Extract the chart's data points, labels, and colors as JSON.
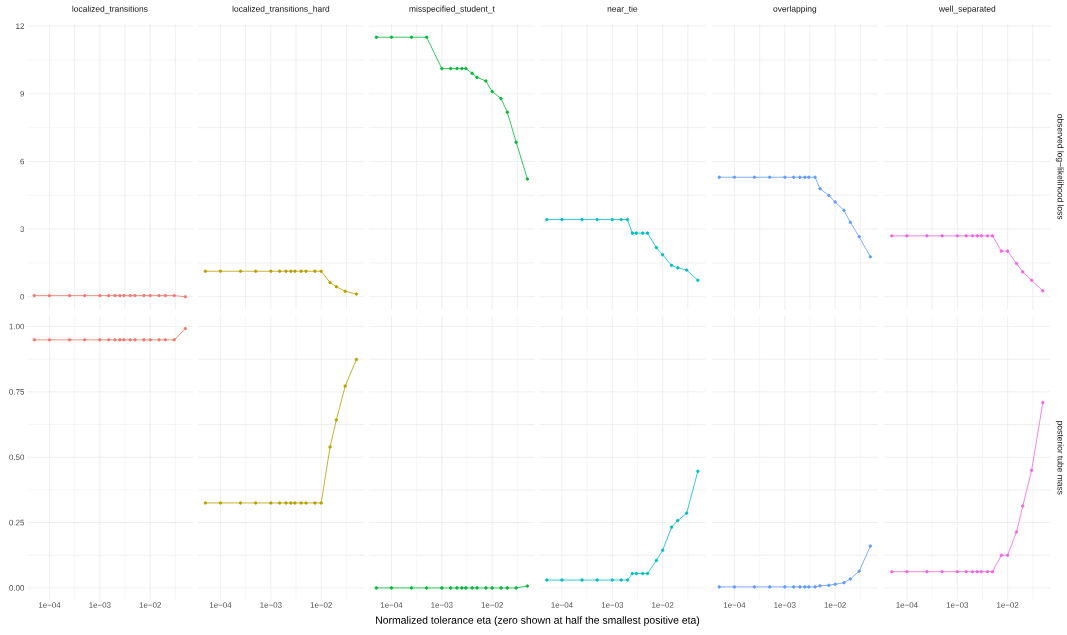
{
  "chart_data": [
    {
      "type": "line",
      "title": "localized_transitions",
      "x": [
        5e-05,
        0.0001,
        0.00025,
        0.0005,
        0.001,
        0.0015,
        0.002,
        0.0025,
        0.003,
        0.004,
        0.005,
        0.0075,
        0.01,
        0.015,
        0.02,
        0.03,
        0.05
      ],
      "series": [
        {
          "color": "#F8766D",
          "values": [
            0.05,
            0.05,
            0.05,
            0.05,
            0.05,
            0.05,
            0.05,
            0.05,
            0.05,
            0.05,
            0.05,
            0.05,
            0.05,
            0.05,
            0.05,
            0.05,
            0.0
          ]
        }
      ],
      "log": "x",
      "xlim": [
        3.56e-05,
        0.0705
      ],
      "ylim": [
        -0.57,
        12.1
      ],
      "xticks": [
        {
          "value": 0.0001,
          "label": null
        },
        {
          "value": 0.000316,
          "label": null
        },
        {
          "value": 0.001,
          "label": null
        },
        {
          "value": 0.00316,
          "label": null
        },
        {
          "value": 0.01,
          "label": null
        },
        {
          "value": 0.0316,
          "label": null
        }
      ],
      "yticks": [
        0,
        {
          "value": 1.5,
          "label": null
        },
        3,
        {
          "value": 4.5,
          "label": null
        },
        6,
        {
          "value": 7.5,
          "label": null
        },
        9,
        {
          "value": 10.5,
          "label": null
        },
        12
      ],
      "grid": true,
      "marker": "circle",
      "tick_labels": "y"
    },
    {
      "type": "line",
      "title": "localized_transitions_hard",
      "x": [
        5e-05,
        0.0001,
        0.00025,
        0.0005,
        0.001,
        0.0015,
        0.002,
        0.0025,
        0.003,
        0.004,
        0.005,
        0.0075,
        0.01,
        0.015,
        0.02,
        0.03,
        0.05
      ],
      "series": [
        {
          "color": "#B79F00",
          "values": [
            1.13,
            1.13,
            1.13,
            1.13,
            1.13,
            1.13,
            1.13,
            1.13,
            1.13,
            1.13,
            1.13,
            1.13,
            1.13,
            0.63,
            0.44,
            0.24,
            0.12
          ]
        }
      ],
      "log": "x",
      "xlim": [
        3.56e-05,
        0.0705
      ],
      "ylim": [
        -0.57,
        12.1
      ],
      "xticks": [
        {
          "value": 0.0001,
          "label": null
        },
        {
          "value": 0.000316,
          "label": null
        },
        {
          "value": 0.001,
          "label": null
        },
        {
          "value": 0.00316,
          "label": null
        },
        {
          "value": 0.01,
          "label": null
        },
        {
          "value": 0.0316,
          "label": null
        }
      ],
      "yticks": [
        {
          "value": 0,
          "label": null
        },
        {
          "value": 1.5,
          "label": null
        },
        {
          "value": 3,
          "label": null
        },
        {
          "value": 4.5,
          "label": null
        },
        {
          "value": 6,
          "label": null
        },
        {
          "value": 7.5,
          "label": null
        },
        {
          "value": 9,
          "label": null
        },
        {
          "value": 10.5,
          "label": null
        },
        {
          "value": 12,
          "label": null
        }
      ],
      "grid": true,
      "marker": "circle",
      "tick_labels": false
    },
    {
      "type": "line",
      "title": "misspecified_student_t",
      "x": [
        5e-05,
        0.0001,
        0.00025,
        0.0005,
        0.001,
        0.0015,
        0.002,
        0.0025,
        0.003,
        0.004,
        0.005,
        0.0075,
        0.01,
        0.015,
        0.02,
        0.03,
        0.05
      ],
      "series": [
        {
          "color": "#00BA38",
          "values": [
            11.51,
            11.51,
            11.51,
            11.51,
            10.12,
            10.12,
            10.12,
            10.12,
            10.12,
            9.91,
            9.73,
            9.57,
            9.1,
            8.79,
            8.18,
            6.85,
            5.22
          ]
        }
      ],
      "log": "x",
      "xlim": [
        3.56e-05,
        0.0705
      ],
      "ylim": [
        -0.57,
        12.1
      ],
      "xticks": [
        {
          "value": 0.0001,
          "label": null
        },
        {
          "value": 0.000316,
          "label": null
        },
        {
          "value": 0.001,
          "label": null
        },
        {
          "value": 0.00316,
          "label": null
        },
        {
          "value": 0.01,
          "label": null
        },
        {
          "value": 0.0316,
          "label": null
        }
      ],
      "yticks": [
        {
          "value": 0,
          "label": null
        },
        {
          "value": 1.5,
          "label": null
        },
        {
          "value": 3,
          "label": null
        },
        {
          "value": 4.5,
          "label": null
        },
        {
          "value": 6,
          "label": null
        },
        {
          "value": 7.5,
          "label": null
        },
        {
          "value": 9,
          "label": null
        },
        {
          "value": 10.5,
          "label": null
        },
        {
          "value": 12,
          "label": null
        }
      ],
      "grid": true,
      "marker": "circle",
      "tick_labels": false
    },
    {
      "type": "line",
      "title": "near_tie",
      "x": [
        5e-05,
        0.0001,
        0.00025,
        0.0005,
        0.001,
        0.0015,
        0.002,
        0.0025,
        0.003,
        0.004,
        0.005,
        0.0075,
        0.01,
        0.015,
        0.02,
        0.03,
        0.05
      ],
      "series": [
        {
          "color": "#00BFC4",
          "values": [
            3.42,
            3.42,
            3.42,
            3.42,
            3.42,
            3.42,
            3.42,
            2.82,
            2.82,
            2.82,
            2.82,
            2.18,
            1.86,
            1.39,
            1.28,
            1.18,
            0.73
          ]
        }
      ],
      "log": "x",
      "xlim": [
        3.56e-05,
        0.0705
      ],
      "ylim": [
        -0.57,
        12.1
      ],
      "xticks": [
        {
          "value": 0.0001,
          "label": null
        },
        {
          "value": 0.000316,
          "label": null
        },
        {
          "value": 0.001,
          "label": null
        },
        {
          "value": 0.00316,
          "label": null
        },
        {
          "value": 0.01,
          "label": null
        },
        {
          "value": 0.0316,
          "label": null
        }
      ],
      "yticks": [
        {
          "value": 0,
          "label": null
        },
        {
          "value": 1.5,
          "label": null
        },
        {
          "value": 3,
          "label": null
        },
        {
          "value": 4.5,
          "label": null
        },
        {
          "value": 6,
          "label": null
        },
        {
          "value": 7.5,
          "label": null
        },
        {
          "value": 9,
          "label": null
        },
        {
          "value": 10.5,
          "label": null
        },
        {
          "value": 12,
          "label": null
        }
      ],
      "grid": true,
      "marker": "circle",
      "tick_labels": false
    },
    {
      "type": "line",
      "title": "overlapping",
      "x": [
        5e-05,
        0.0001,
        0.00025,
        0.0005,
        0.001,
        0.0015,
        0.002,
        0.0025,
        0.003,
        0.004,
        0.005,
        0.0075,
        0.01,
        0.015,
        0.02,
        0.03,
        0.05
      ],
      "series": [
        {
          "color": "#619CFF",
          "values": [
            5.3,
            5.3,
            5.3,
            5.3,
            5.3,
            5.3,
            5.3,
            5.3,
            5.3,
            5.3,
            4.79,
            4.49,
            4.2,
            3.83,
            3.3,
            2.66,
            1.77
          ]
        }
      ],
      "log": "x",
      "xlim": [
        3.56e-05,
        0.0705
      ],
      "ylim": [
        -0.57,
        12.1
      ],
      "xticks": [
        {
          "value": 0.0001,
          "label": null
        },
        {
          "value": 0.000316,
          "label": null
        },
        {
          "value": 0.001,
          "label": null
        },
        {
          "value": 0.00316,
          "label": null
        },
        {
          "value": 0.01,
          "label": null
        },
        {
          "value": 0.0316,
          "label": null
        }
      ],
      "yticks": [
        {
          "value": 0,
          "label": null
        },
        {
          "value": 1.5,
          "label": null
        },
        {
          "value": 3,
          "label": null
        },
        {
          "value": 4.5,
          "label": null
        },
        {
          "value": 6,
          "label": null
        },
        {
          "value": 7.5,
          "label": null
        },
        {
          "value": 9,
          "label": null
        },
        {
          "value": 10.5,
          "label": null
        },
        {
          "value": 12,
          "label": null
        }
      ],
      "grid": true,
      "marker": "circle",
      "tick_labels": false
    },
    {
      "type": "line",
      "title": "well_separated",
      "ylabel": "observed log−likelihood loss",
      "x": [
        5e-05,
        0.0001,
        0.00025,
        0.0005,
        0.001,
        0.0015,
        0.002,
        0.0025,
        0.003,
        0.004,
        0.005,
        0.0075,
        0.01,
        0.015,
        0.02,
        0.03,
        0.05
      ],
      "series": [
        {
          "color": "#F564E3",
          "values": [
            2.7,
            2.7,
            2.7,
            2.7,
            2.7,
            2.7,
            2.7,
            2.7,
            2.7,
            2.7,
            2.7,
            2.02,
            2.02,
            1.47,
            1.1,
            0.73,
            0.26
          ]
        }
      ],
      "log": "x",
      "xlim": [
        3.56e-05,
        0.0705
      ],
      "ylim": [
        -0.57,
        12.1
      ],
      "xticks": [
        {
          "value": 0.0001,
          "label": null
        },
        {
          "value": 0.000316,
          "label": null
        },
        {
          "value": 0.001,
          "label": null
        },
        {
          "value": 0.00316,
          "label": null
        },
        {
          "value": 0.01,
          "label": null
        },
        {
          "value": 0.0316,
          "label": null
        }
      ],
      "yticks": [
        {
          "value": 0,
          "label": null
        },
        {
          "value": 1.5,
          "label": null
        },
        {
          "value": 3,
          "label": null
        },
        {
          "value": 4.5,
          "label": null
        },
        {
          "value": 6,
          "label": null
        },
        {
          "value": 7.5,
          "label": null
        },
        {
          "value": 9,
          "label": null
        },
        {
          "value": 10.5,
          "label": null
        },
        {
          "value": 12,
          "label": null
        }
      ],
      "grid": true,
      "marker": "circle",
      "tick_labels": false
    },
    {
      "type": "line",
      "x": [
        5e-05,
        0.0001,
        0.00025,
        0.0005,
        0.001,
        0.0015,
        0.002,
        0.0025,
        0.003,
        0.004,
        0.005,
        0.0075,
        0.01,
        0.015,
        0.02,
        0.03,
        0.05
      ],
      "series": [
        {
          "color": "#F8766D",
          "values": [
            0.949,
            0.949,
            0.949,
            0.949,
            0.949,
            0.949,
            0.949,
            0.949,
            0.949,
            0.949,
            0.949,
            0.949,
            0.949,
            0.949,
            0.949,
            0.949,
            0.992
          ]
        }
      ],
      "log": "x",
      "xlim": [
        3.56e-05,
        0.0705
      ],
      "ylim": [
        -0.045,
        1.04
      ],
      "xticks": [
        {
          "value": 0.0001,
          "label": "1e−04"
        },
        {
          "value": 0.000316,
          "label": null
        },
        {
          "value": 0.001,
          "label": "1e−03"
        },
        {
          "value": 0.00316,
          "label": null
        },
        {
          "value": 0.01,
          "label": "1e−02"
        },
        {
          "value": 0.0316,
          "label": null
        }
      ],
      "yticks": [
        {
          "value": 0,
          "label": "0.00"
        },
        {
          "value": 0.125,
          "label": null
        },
        {
          "value": 0.25,
          "label": "0.25"
        },
        {
          "value": 0.375,
          "label": null
        },
        {
          "value": 0.5,
          "label": "0.50"
        },
        {
          "value": 0.625,
          "label": null
        },
        {
          "value": 0.75,
          "label": "0.75"
        },
        {
          "value": 0.875,
          "label": null
        },
        {
          "value": 1,
          "label": "1.00"
        }
      ],
      "grid": true,
      "marker": "circle"
    },
    {
      "type": "line",
      "x": [
        5e-05,
        0.0001,
        0.00025,
        0.0005,
        0.001,
        0.0015,
        0.002,
        0.0025,
        0.003,
        0.004,
        0.005,
        0.0075,
        0.01,
        0.015,
        0.02,
        0.03,
        0.05
      ],
      "series": [
        {
          "color": "#B79F00",
          "values": [
            0.325,
            0.325,
            0.325,
            0.325,
            0.325,
            0.325,
            0.325,
            0.325,
            0.325,
            0.325,
            0.325,
            0.325,
            0.325,
            0.539,
            0.643,
            0.772,
            0.874
          ]
        }
      ],
      "log": "x",
      "xlim": [
        3.56e-05,
        0.0705
      ],
      "ylim": [
        -0.045,
        1.04
      ],
      "xticks": [
        {
          "value": 0.0001,
          "label": "1e−04"
        },
        {
          "value": 0.000316,
          "label": null
        },
        {
          "value": 0.001,
          "label": "1e−03"
        },
        {
          "value": 0.00316,
          "label": null
        },
        {
          "value": 0.01,
          "label": "1e−02"
        },
        {
          "value": 0.0316,
          "label": null
        }
      ],
      "yticks": [
        {
          "value": 0,
          "label": null
        },
        {
          "value": 0.125,
          "label": null
        },
        {
          "value": 0.25,
          "label": null
        },
        {
          "value": 0.375,
          "label": null
        },
        {
          "value": 0.5,
          "label": null
        },
        {
          "value": 0.625,
          "label": null
        },
        {
          "value": 0.75,
          "label": null
        },
        {
          "value": 0.875,
          "label": null
        },
        {
          "value": 1,
          "label": null
        }
      ],
      "grid": true,
      "marker": "circle",
      "tick_labels": "x"
    },
    {
      "type": "line",
      "xlabel": "Normalized tolerance eta (zero shown at half the smallest positive eta)",
      "x": [
        5e-05,
        0.0001,
        0.00025,
        0.0005,
        0.001,
        0.0015,
        0.002,
        0.0025,
        0.003,
        0.004,
        0.005,
        0.0075,
        0.01,
        0.015,
        0.02,
        0.03,
        0.05
      ],
      "series": [
        {
          "color": "#00BA38",
          "values": [
            0.0,
            0.0,
            0.0,
            0.0,
            0.0,
            0.0,
            0.0,
            0.0,
            0.0,
            0.0,
            0.0,
            0.0,
            0.0,
            0.0,
            0.0,
            0.0,
            0.007
          ]
        }
      ],
      "log": "x",
      "xlim": [
        3.56e-05,
        0.0705
      ],
      "ylim": [
        -0.045,
        1.04
      ],
      "xticks": [
        {
          "value": 0.0001,
          "label": "1e−04"
        },
        {
          "value": 0.000316,
          "label": null
        },
        {
          "value": 0.001,
          "label": "1e−03"
        },
        {
          "value": 0.00316,
          "label": null
        },
        {
          "value": 0.01,
          "label": "1e−02"
        },
        {
          "value": 0.0316,
          "label": null
        }
      ],
      "yticks": [
        {
          "value": 0,
          "label": null
        },
        {
          "value": 0.125,
          "label": null
        },
        {
          "value": 0.25,
          "label": null
        },
        {
          "value": 0.375,
          "label": null
        },
        {
          "value": 0.5,
          "label": null
        },
        {
          "value": 0.625,
          "label": null
        },
        {
          "value": 0.75,
          "label": null
        },
        {
          "value": 0.875,
          "label": null
        },
        {
          "value": 1,
          "label": null
        }
      ],
      "grid": true,
      "marker": "circle",
      "tick_labels": "x"
    },
    {
      "type": "line",
      "x": [
        5e-05,
        0.0001,
        0.00025,
        0.0005,
        0.001,
        0.0015,
        0.002,
        0.0025,
        0.003,
        0.004,
        0.005,
        0.0075,
        0.01,
        0.015,
        0.02,
        0.03,
        0.05
      ],
      "series": [
        {
          "color": "#00BFC4",
          "values": [
            0.03,
            0.03,
            0.03,
            0.03,
            0.03,
            0.03,
            0.03,
            0.055,
            0.055,
            0.055,
            0.055,
            0.105,
            0.144,
            0.232,
            0.258,
            0.286,
            0.446
          ]
        }
      ],
      "log": "x",
      "xlim": [
        3.56e-05,
        0.0705
      ],
      "ylim": [
        -0.045,
        1.04
      ],
      "xticks": [
        {
          "value": 0.0001,
          "label": "1e−04"
        },
        {
          "value": 0.000316,
          "label": null
        },
        {
          "value": 0.001,
          "label": "1e−03"
        },
        {
          "value": 0.00316,
          "label": null
        },
        {
          "value": 0.01,
          "label": "1e−02"
        },
        {
          "value": 0.0316,
          "label": null
        }
      ],
      "yticks": [
        {
          "value": 0,
          "label": null
        },
        {
          "value": 0.125,
          "label": null
        },
        {
          "value": 0.25,
          "label": null
        },
        {
          "value": 0.375,
          "label": null
        },
        {
          "value": 0.5,
          "label": null
        },
        {
          "value": 0.625,
          "label": null
        },
        {
          "value": 0.75,
          "label": null
        },
        {
          "value": 0.875,
          "label": null
        },
        {
          "value": 1,
          "label": null
        }
      ],
      "grid": true,
      "marker": "circle",
      "tick_labels": "x"
    },
    {
      "type": "line",
      "x": [
        5e-05,
        0.0001,
        0.00025,
        0.0005,
        0.001,
        0.0015,
        0.002,
        0.0025,
        0.003,
        0.004,
        0.005,
        0.0075,
        0.01,
        0.015,
        0.02,
        0.03,
        0.05
      ],
      "series": [
        {
          "color": "#619CFF",
          "values": [
            0.004,
            0.004,
            0.004,
            0.004,
            0.004,
            0.004,
            0.004,
            0.004,
            0.004,
            0.004,
            0.008,
            0.01,
            0.014,
            0.02,
            0.034,
            0.064,
            0.16
          ]
        }
      ],
      "log": "x",
      "xlim": [
        3.56e-05,
        0.0705
      ],
      "ylim": [
        -0.045,
        1.04
      ],
      "xticks": [
        {
          "value": 0.0001,
          "label": "1e−04"
        },
        {
          "value": 0.000316,
          "label": null
        },
        {
          "value": 0.001,
          "label": "1e−03"
        },
        {
          "value": 0.00316,
          "label": null
        },
        {
          "value": 0.01,
          "label": "1e−02"
        },
        {
          "value": 0.0316,
          "label": null
        }
      ],
      "yticks": [
        {
          "value": 0,
          "label": null
        },
        {
          "value": 0.125,
          "label": null
        },
        {
          "value": 0.25,
          "label": null
        },
        {
          "value": 0.375,
          "label": null
        },
        {
          "value": 0.5,
          "label": null
        },
        {
          "value": 0.625,
          "label": null
        },
        {
          "value": 0.75,
          "label": null
        },
        {
          "value": 0.875,
          "label": null
        },
        {
          "value": 1,
          "label": null
        }
      ],
      "grid": true,
      "marker": "circle",
      "tick_labels": "x"
    },
    {
      "type": "line",
      "ylabel": "posterior tube mass",
      "x": [
        5e-05,
        0.0001,
        0.00025,
        0.0005,
        0.001,
        0.0015,
        0.002,
        0.0025,
        0.003,
        0.004,
        0.005,
        0.0075,
        0.01,
        0.015,
        0.02,
        0.03,
        0.05
      ],
      "series": [
        {
          "color": "#F564E3",
          "values": [
            0.062,
            0.062,
            0.062,
            0.062,
            0.062,
            0.062,
            0.062,
            0.062,
            0.062,
            0.062,
            0.062,
            0.125,
            0.125,
            0.214,
            0.313,
            0.45,
            0.709
          ]
        }
      ],
      "log": "x",
      "xlim": [
        3.56e-05,
        0.0705
      ],
      "ylim": [
        -0.045,
        1.04
      ],
      "xticks": [
        {
          "value": 0.0001,
          "label": "1e−04"
        },
        {
          "value": 0.000316,
          "label": null
        },
        {
          "value": 0.001,
          "label": "1e−03"
        },
        {
          "value": 0.00316,
          "label": null
        },
        {
          "value": 0.01,
          "label": "1e−02"
        },
        {
          "value": 0.0316,
          "label": null
        }
      ],
      "yticks": [
        {
          "value": 0,
          "label": null
        },
        {
          "value": 0.125,
          "label": null
        },
        {
          "value": 0.25,
          "label": null
        },
        {
          "value": 0.375,
          "label": null
        },
        {
          "value": 0.5,
          "label": null
        },
        {
          "value": 0.625,
          "label": null
        },
        {
          "value": 0.75,
          "label": null
        },
        {
          "value": 0.875,
          "label": null
        },
        {
          "value": 1,
          "label": null
        }
      ],
      "grid": true,
      "marker": "circle",
      "tick_labels": "x"
    }
  ]
}
